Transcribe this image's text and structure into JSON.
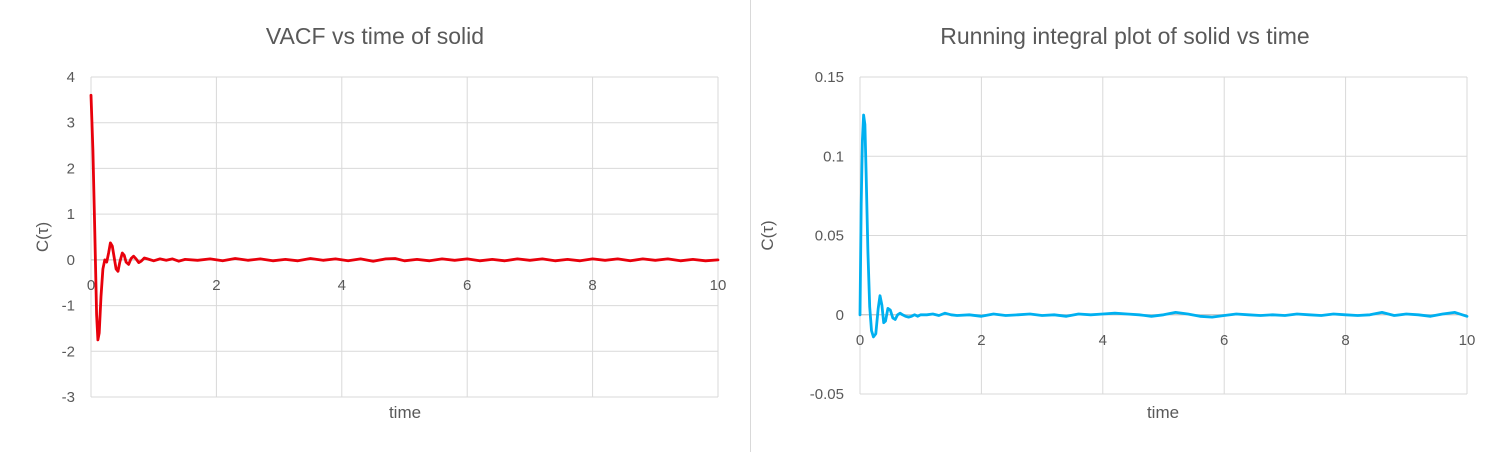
{
  "chart_data": [
    {
      "type": "line",
      "title": "VACF vs time of solid",
      "xlabel": "time",
      "ylabel": "C(τ)",
      "xlim": [
        0,
        10
      ],
      "ylim": [
        -3,
        4
      ],
      "xticks": [
        0,
        2,
        4,
        6,
        8,
        10
      ],
      "yticks": [
        -3,
        -2,
        -1,
        0,
        1,
        2,
        3,
        4
      ],
      "grid": true,
      "legend": "none",
      "series": [
        {
          "color": "#e8000b",
          "points": [
            [
              0.0,
              3.6
            ],
            [
              0.03,
              2.4
            ],
            [
              0.06,
              0.6
            ],
            [
              0.09,
              -1.2
            ],
            [
              0.11,
              -1.75
            ],
            [
              0.13,
              -1.6
            ],
            [
              0.16,
              -0.8
            ],
            [
              0.19,
              -0.2
            ],
            [
              0.22,
              0.0
            ],
            [
              0.25,
              -0.05
            ],
            [
              0.28,
              0.15
            ],
            [
              0.31,
              0.37
            ],
            [
              0.34,
              0.3
            ],
            [
              0.37,
              0.05
            ],
            [
              0.4,
              -0.2
            ],
            [
              0.43,
              -0.25
            ],
            [
              0.46,
              -0.05
            ],
            [
              0.5,
              0.15
            ],
            [
              0.53,
              0.1
            ],
            [
              0.56,
              -0.05
            ],
            [
              0.6,
              -0.1
            ],
            [
              0.64,
              0.03
            ],
            [
              0.68,
              0.08
            ],
            [
              0.72,
              0.02
            ],
            [
              0.76,
              -0.06
            ],
            [
              0.8,
              -0.03
            ],
            [
              0.85,
              0.04
            ],
            [
              0.9,
              0.02
            ],
            [
              1.0,
              -0.02
            ],
            [
              1.1,
              0.02
            ],
            [
              1.2,
              -0.01
            ],
            [
              1.3,
              0.02
            ],
            [
              1.4,
              -0.03
            ],
            [
              1.5,
              0.01
            ],
            [
              1.7,
              -0.01
            ],
            [
              1.9,
              0.02
            ],
            [
              2.1,
              -0.02
            ],
            [
              2.3,
              0.03
            ],
            [
              2.5,
              -0.01
            ],
            [
              2.7,
              0.02
            ],
            [
              2.9,
              -0.02
            ],
            [
              3.1,
              0.01
            ],
            [
              3.3,
              -0.02
            ],
            [
              3.5,
              0.03
            ],
            [
              3.7,
              -0.01
            ],
            [
              3.9,
              0.02
            ],
            [
              4.1,
              -0.02
            ],
            [
              4.3,
              0.02
            ],
            [
              4.5,
              -0.03
            ],
            [
              4.7,
              0.02
            ],
            [
              4.85,
              0.03
            ],
            [
              5.0,
              -0.02
            ],
            [
              5.2,
              0.01
            ],
            [
              5.4,
              -0.02
            ],
            [
              5.6,
              0.02
            ],
            [
              5.8,
              -0.01
            ],
            [
              6.0,
              0.02
            ],
            [
              6.2,
              -0.02
            ],
            [
              6.4,
              0.01
            ],
            [
              6.6,
              -0.02
            ],
            [
              6.8,
              0.02
            ],
            [
              7.0,
              -0.01
            ],
            [
              7.2,
              0.02
            ],
            [
              7.4,
              -0.02
            ],
            [
              7.6,
              0.01
            ],
            [
              7.8,
              -0.02
            ],
            [
              8.0,
              0.02
            ],
            [
              8.2,
              -0.01
            ],
            [
              8.4,
              0.02
            ],
            [
              8.6,
              -0.02
            ],
            [
              8.8,
              0.02
            ],
            [
              9.0,
              -0.01
            ],
            [
              9.2,
              0.02
            ],
            [
              9.4,
              -0.02
            ],
            [
              9.6,
              0.01
            ],
            [
              9.8,
              -0.02
            ],
            [
              10.0,
              0.0
            ]
          ]
        }
      ]
    },
    {
      "type": "line",
      "title": "Running integral plot of solid vs time",
      "xlabel": "time",
      "ylabel": "C(τ)",
      "xlim": [
        0,
        10
      ],
      "ylim": [
        -0.05,
        0.15
      ],
      "xticks": [
        0,
        2,
        4,
        6,
        8,
        10
      ],
      "yticks": [
        -0.05,
        0,
        0.05,
        0.1,
        0.15
      ],
      "grid": true,
      "legend": "none",
      "series": [
        {
          "color": "#00b0f0",
          "points": [
            [
              0.0,
              0.0
            ],
            [
              0.02,
              0.07
            ],
            [
              0.04,
              0.11
            ],
            [
              0.06,
              0.126
            ],
            [
              0.08,
              0.12
            ],
            [
              0.1,
              0.09
            ],
            [
              0.13,
              0.04
            ],
            [
              0.16,
              0.005
            ],
            [
              0.19,
              -0.01
            ],
            [
              0.22,
              -0.014
            ],
            [
              0.26,
              -0.012
            ],
            [
              0.3,
              0.004
            ],
            [
              0.33,
              0.012
            ],
            [
              0.36,
              0.006
            ],
            [
              0.39,
              -0.005
            ],
            [
              0.42,
              -0.004
            ],
            [
              0.46,
              0.004
            ],
            [
              0.5,
              0.003
            ],
            [
              0.54,
              -0.002
            ],
            [
              0.58,
              -0.003
            ],
            [
              0.62,
              0.0
            ],
            [
              0.66,
              0.001
            ],
            [
              0.7,
              0.0
            ],
            [
              0.75,
              -0.001
            ],
            [
              0.8,
              -0.0015
            ],
            [
              0.85,
              -0.001
            ],
            [
              0.9,
              0.0
            ],
            [
              0.95,
              -0.001
            ],
            [
              1.0,
              0.0
            ],
            [
              1.1,
              0.0
            ],
            [
              1.2,
              0.0005
            ],
            [
              1.3,
              -0.0005
            ],
            [
              1.4,
              0.001
            ],
            [
              1.5,
              0.0
            ],
            [
              1.6,
              -0.0005
            ],
            [
              1.8,
              0.0
            ],
            [
              2.0,
              -0.001
            ],
            [
              2.2,
              0.0005
            ],
            [
              2.4,
              -0.0005
            ],
            [
              2.6,
              0.0
            ],
            [
              2.8,
              0.0005
            ],
            [
              3.0,
              -0.0005
            ],
            [
              3.2,
              0.0
            ],
            [
              3.4,
              -0.001
            ],
            [
              3.6,
              0.0005
            ],
            [
              3.8,
              0.0
            ],
            [
              4.0,
              0.0005
            ],
            [
              4.2,
              0.001
            ],
            [
              4.4,
              0.0005
            ],
            [
              4.6,
              0.0
            ],
            [
              4.8,
              -0.001
            ],
            [
              5.0,
              0.0
            ],
            [
              5.2,
              0.0015
            ],
            [
              5.4,
              0.0005
            ],
            [
              5.6,
              -0.001
            ],
            [
              5.8,
              -0.0015
            ],
            [
              6.0,
              -0.0005
            ],
            [
              6.2,
              0.0005
            ],
            [
              6.4,
              0.0
            ],
            [
              6.6,
              -0.0005
            ],
            [
              6.8,
              0.0
            ],
            [
              7.0,
              -0.0005
            ],
            [
              7.2,
              0.0005
            ],
            [
              7.4,
              0.0
            ],
            [
              7.6,
              -0.0005
            ],
            [
              7.8,
              0.0005
            ],
            [
              8.0,
              0.0
            ],
            [
              8.2,
              -0.0005
            ],
            [
              8.4,
              0.0
            ],
            [
              8.6,
              0.0015
            ],
            [
              8.8,
              -0.0005
            ],
            [
              9.0,
              0.0005
            ],
            [
              9.2,
              0.0
            ],
            [
              9.4,
              -0.001
            ],
            [
              9.6,
              0.0005
            ],
            [
              9.8,
              0.0015
            ],
            [
              10.0,
              -0.001
            ]
          ]
        }
      ]
    }
  ]
}
